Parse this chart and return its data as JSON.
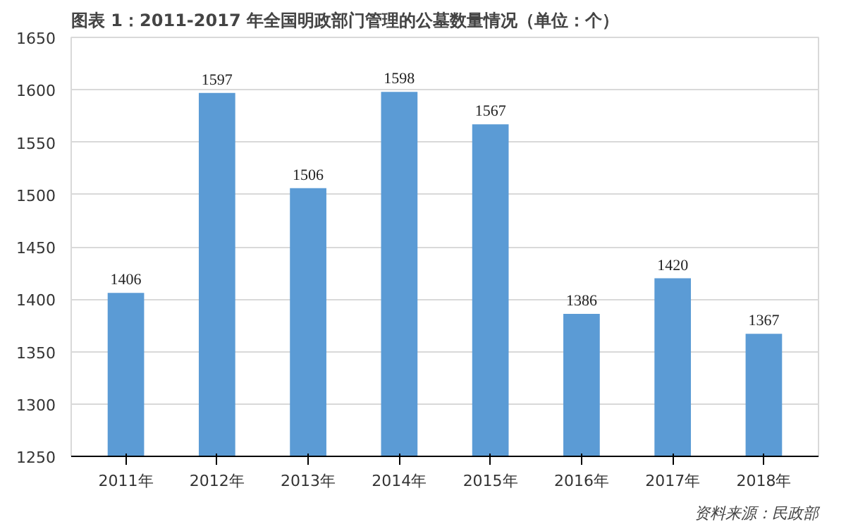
{
  "chart_data": {
    "type": "bar",
    "title": "图表 1：2011-2017 年全国明政部门管理的公墓数量情况（单位：个）",
    "categories": [
      "2011年",
      "2012年",
      "2013年",
      "2014年",
      "2015年",
      "2016年",
      "2017年",
      "2018年"
    ],
    "values": [
      1406,
      1597,
      1506,
      1598,
      1567,
      1386,
      1420,
      1367
    ],
    "color": "#5b9bd5",
    "ylim": [
      1250,
      1650
    ],
    "yticks": [
      1250,
      1300,
      1350,
      1400,
      1450,
      1500,
      1550,
      1600,
      1650
    ],
    "grid": "y",
    "data_labels": true,
    "annotations": [
      "资料来源：民政部"
    ]
  }
}
